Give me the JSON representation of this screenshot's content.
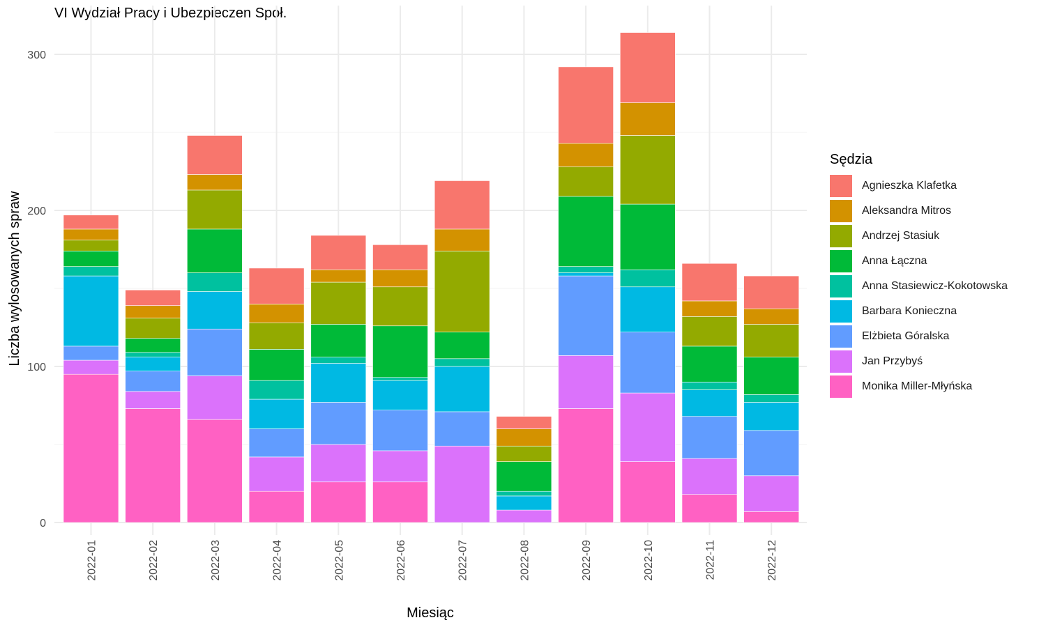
{
  "chart_data": {
    "type": "bar",
    "stacked": true,
    "title": "VI Wydział Pracy i Ubezpieczen Społ.",
    "xlabel": "Miesiąc",
    "ylabel": "Liczba wylosowanych spraw",
    "ylim": [
      0,
      315
    ],
    "yticks": [
      0,
      100,
      200,
      300
    ],
    "grid": true,
    "legend_title": "Sędzia",
    "legend_position": "right",
    "categories": [
      "2022-01",
      "2022-02",
      "2022-03",
      "2022-04",
      "2022-05",
      "2022-06",
      "2022-07",
      "2022-08",
      "2022-09",
      "2022-10",
      "2022-11",
      "2022-12"
    ],
    "series": [
      {
        "name": "Monika Miller-Młyńska",
        "color": "#FF61C3",
        "values": [
          95,
          73,
          66,
          20,
          26,
          26,
          0,
          0,
          73,
          39,
          18,
          7
        ]
      },
      {
        "name": "Jan Przybyś",
        "color": "#DB72FB",
        "values": [
          9,
          11,
          28,
          22,
          24,
          20,
          49,
          8,
          34,
          44,
          23,
          23
        ]
      },
      {
        "name": "Elżbieta Góralska",
        "color": "#619CFF",
        "values": [
          9,
          13,
          30,
          18,
          27,
          26,
          22,
          0,
          51,
          39,
          27,
          29
        ]
      },
      {
        "name": "Barbara Konieczna",
        "color": "#00B9E3",
        "values": [
          45,
          9,
          24,
          19,
          25,
          19,
          29,
          9,
          2,
          29,
          17,
          18
        ]
      },
      {
        "name": "Anna Stasiewicz-Kokotowska",
        "color": "#00C19F",
        "values": [
          6,
          3,
          12,
          12,
          4,
          2,
          5,
          3,
          4,
          11,
          5,
          5
        ]
      },
      {
        "name": "Anna Łączna",
        "color": "#00BA38",
        "values": [
          10,
          9,
          28,
          20,
          21,
          33,
          17,
          19,
          45,
          42,
          23,
          24
        ]
      },
      {
        "name": "Andrzej Stasiuk",
        "color": "#93AA00",
        "values": [
          7,
          13,
          25,
          17,
          27,
          25,
          52,
          10,
          19,
          44,
          19,
          21
        ]
      },
      {
        "name": "Aleksandra Mitros",
        "color": "#D39200",
        "values": [
          7,
          8,
          10,
          12,
          8,
          11,
          14,
          11,
          15,
          21,
          10,
          10
        ]
      },
      {
        "name": "Agnieszka Klafetka",
        "color": "#F8766D",
        "values": [
          9,
          10,
          25,
          23,
          22,
          16,
          31,
          8,
          49,
          45,
          24,
          21
        ]
      }
    ]
  }
}
